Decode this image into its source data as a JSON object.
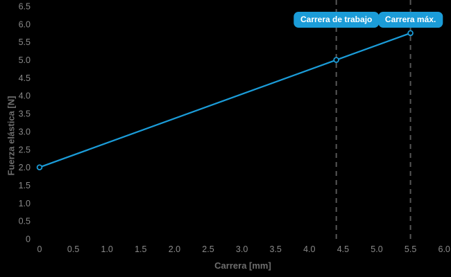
{
  "chart_data": {
    "type": "line",
    "title": "",
    "xlabel": "Carrera [mm]",
    "ylabel": "Fuerza elástica [N]",
    "xlim": [
      0,
      6.0
    ],
    "ylim": [
      0,
      6.5
    ],
    "xticks": [
      0,
      0.5,
      1.0,
      1.5,
      2.0,
      2.5,
      3.0,
      3.5,
      4.0,
      4.5,
      5.0,
      5.5,
      6.0
    ],
    "yticks": [
      0,
      0.5,
      1.0,
      1.5,
      2.0,
      2.5,
      3.0,
      3.5,
      4.0,
      4.5,
      5.0,
      5.5,
      6.0,
      6.5
    ],
    "grid": false,
    "legend": "none",
    "series": [
      {
        "name": "Fuerza elástica",
        "points": [
          {
            "x": 0,
            "y": 2.0
          },
          {
            "x": 4.4,
            "y": 5.0
          },
          {
            "x": 5.5,
            "y": 5.75
          }
        ]
      }
    ],
    "annotations": [
      {
        "label": "Carrera de trabajo",
        "x": 4.4,
        "style": "dashed-vertical-line-with-badge"
      },
      {
        "label": "Carrera máx.",
        "x": 5.5,
        "style": "dashed-vertical-line-with-badge"
      }
    ]
  },
  "colors": {
    "background": "#000000",
    "line_blue": "#1b9cd8",
    "badge_background": "#1b9cd8",
    "badge_text": "#ffffff",
    "marker_fill": "#000000",
    "dashed_line": "#575757",
    "tick_text": "#8a8a8a",
    "axis_title_text": "#6e6e6e"
  }
}
